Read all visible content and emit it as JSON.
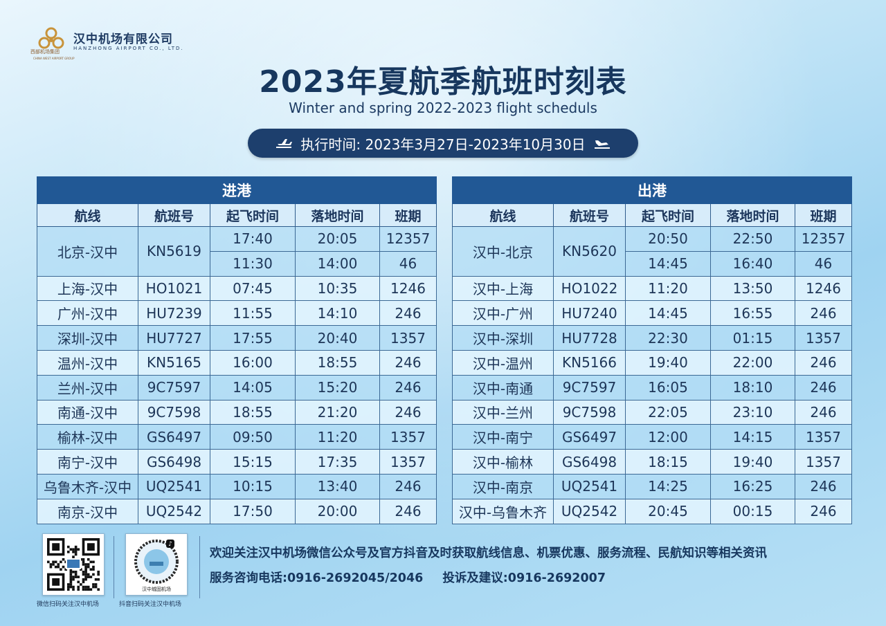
{
  "logo": {
    "name": "汉中机场有限公司",
    "english": "HANZHONG AIRPORT CO., LTD.",
    "group": "西部机场集团",
    "group_english": "CHINA WEST AIRPORT GROUP"
  },
  "title": "2023年夏航季航班时刻表",
  "subtitle": "Winter and spring 2022-2023 flight scheduls",
  "period": "执行时间: 2023年3月27日-2023年10月30日",
  "headers": [
    "航线",
    "航班号",
    "起飞时间",
    "落地时间",
    "班期"
  ],
  "arrivals": {
    "caption": "进港",
    "rows": [
      {
        "route": "北京-汉中",
        "flight": "KN5619",
        "dep": "17:40",
        "arr": "20:05",
        "days": "12357"
      },
      {
        "route": "",
        "flight": "",
        "dep": "11:30",
        "arr": "14:00",
        "days": "46"
      },
      {
        "route": "上海-汉中",
        "flight": "HO1021",
        "dep": "07:45",
        "arr": "10:35",
        "days": "1246"
      },
      {
        "route": "广州-汉中",
        "flight": "HU7239",
        "dep": "11:55",
        "arr": "14:10",
        "days": "246"
      },
      {
        "route": "深圳-汉中",
        "flight": "HU7727",
        "dep": "17:55",
        "arr": "20:40",
        "days": "1357"
      },
      {
        "route": "温州-汉中",
        "flight": "KN5165",
        "dep": "16:00",
        "arr": "18:55",
        "days": "246"
      },
      {
        "route": "兰州-汉中",
        "flight": "9C7597",
        "dep": "14:05",
        "arr": "15:20",
        "days": "246"
      },
      {
        "route": "南通-汉中",
        "flight": "9C7598",
        "dep": "18:55",
        "arr": "21:20",
        "days": "246"
      },
      {
        "route": "榆林-汉中",
        "flight": "GS6497",
        "dep": "09:50",
        "arr": "11:20",
        "days": "1357"
      },
      {
        "route": "南宁-汉中",
        "flight": "GS6498",
        "dep": "15:15",
        "arr": "17:35",
        "days": "1357"
      },
      {
        "route": "乌鲁木齐-汉中",
        "flight": "UQ2541",
        "dep": "10:15",
        "arr": "13:40",
        "days": "246"
      },
      {
        "route": "南京-汉中",
        "flight": "UQ2542",
        "dep": "17:50",
        "arr": "20:00",
        "days": "246"
      }
    ]
  },
  "departures": {
    "caption": "出港",
    "rows": [
      {
        "route": "汉中-北京",
        "flight": "KN5620",
        "dep": "20:50",
        "arr": "22:50",
        "days": "12357"
      },
      {
        "route": "",
        "flight": "",
        "dep": "14:45",
        "arr": "16:40",
        "days": "46"
      },
      {
        "route": "汉中-上海",
        "flight": "HO1022",
        "dep": "11:20",
        "arr": "13:50",
        "days": "1246"
      },
      {
        "route": "汉中-广州",
        "flight": "HU7240",
        "dep": "14:45",
        "arr": "16:55",
        "days": "246"
      },
      {
        "route": "汉中-深圳",
        "flight": "HU7728",
        "dep": "22:30",
        "arr": "01:15",
        "days": "1357"
      },
      {
        "route": "汉中-温州",
        "flight": "KN5166",
        "dep": "19:40",
        "arr": "22:00",
        "days": "246"
      },
      {
        "route": "汉中-南通",
        "flight": "9C7597",
        "dep": "16:05",
        "arr": "18:10",
        "days": "246"
      },
      {
        "route": "汉中-兰州",
        "flight": "9C7598",
        "dep": "22:05",
        "arr": "23:10",
        "days": "246"
      },
      {
        "route": "汉中-南宁",
        "flight": "GS6497",
        "dep": "12:00",
        "arr": "14:15",
        "days": "1357"
      },
      {
        "route": "汉中-榆林",
        "flight": "GS6498",
        "dep": "18:15",
        "arr": "19:40",
        "days": "1357"
      },
      {
        "route": "汉中-南京",
        "flight": "UQ2541",
        "dep": "14:25",
        "arr": "16:25",
        "days": "246"
      },
      {
        "route": "汉中-乌鲁木齐",
        "flight": "UQ2542",
        "dep": "20:45",
        "arr": "00:15",
        "days": "246"
      }
    ]
  },
  "footer": {
    "wechat_caption": "微信扫码关注汉中机场",
    "douyin_caption": "抖音扫码关注汉中机场",
    "douyin_inner_label": "汉中城固机场",
    "info": "欢迎关注汉中机场微信公众号及官方抖音及时获取航线信息、机票优惠、服务流程、民航知识等相关资讯",
    "service_phone": "服务咨询电话:0916-2692045/2046",
    "complaint_phone": "投诉及建议:0916-2692007"
  },
  "colors": {
    "navy": "#17375e",
    "caption_blue": "#215895",
    "pill": "#1d3f6d",
    "logo_gold": "#c8933a"
  },
  "icons": [
    "logo-mark-icon",
    "takeoff-plane-icon",
    "landing-plane-icon",
    "wechat-qr-icon",
    "douyin-qr-icon"
  ]
}
